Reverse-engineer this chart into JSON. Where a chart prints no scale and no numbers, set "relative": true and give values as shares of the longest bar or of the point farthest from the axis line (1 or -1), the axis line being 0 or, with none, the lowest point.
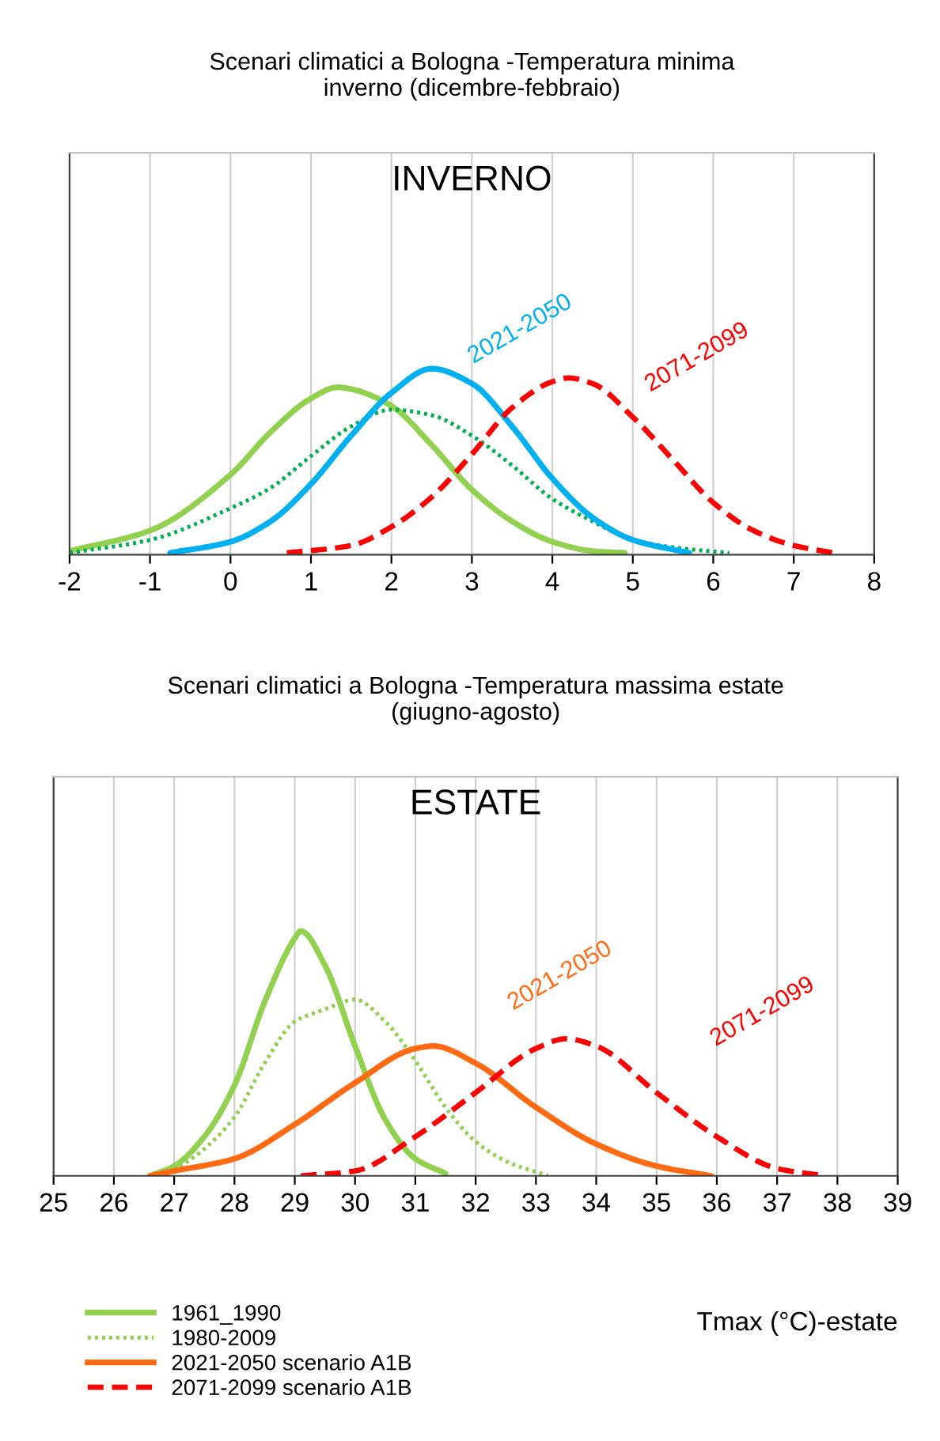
{
  "chart_data": [
    {
      "type": "line",
      "title": "Scenari climatici a Bologna -Temperatura minima\ninverno (dicembre-febbraio)",
      "subtitle": "INVERNO",
      "relative": true,
      "xlim": [
        -2,
        8
      ],
      "xticks": [
        -2,
        -1,
        0,
        1,
        2,
        3,
        4,
        5,
        6,
        7,
        8
      ],
      "grid": "x",
      "legend": false,
      "annotations": [
        "2021-2050",
        "2071-2099"
      ],
      "series": [
        {
          "color": "#92d050",
          "line_style": "solid",
          "x": [
            -2,
            -1,
            0,
            0.5,
            1,
            1.33,
            1.5,
            2,
            2.5,
            3,
            3.5,
            4,
            4.5,
            4.9
          ],
          "values": [
            0.02,
            0.13,
            0.43,
            0.66,
            0.84,
            0.9,
            0.89,
            0.8,
            0.59,
            0.35,
            0.18,
            0.07,
            0.02,
            0.01
          ]
        },
        {
          "color": "#00b050",
          "line_style": "dotted",
          "x": [
            -2,
            -1,
            0,
            0.5,
            1,
            1.5,
            2,
            2.5,
            3,
            3.5,
            4,
            4.5,
            5,
            5.5,
            6.2
          ],
          "values": [
            0.01,
            0.08,
            0.25,
            0.36,
            0.53,
            0.69,
            0.78,
            0.75,
            0.64,
            0.48,
            0.3,
            0.18,
            0.08,
            0.04,
            0.01
          ]
        },
        {
          "color": "#00b0f0",
          "line_style": "solid",
          "x": [
            -0.75,
            0,
            0.5,
            1,
            1.5,
            2,
            2.5,
            3,
            3.5,
            4,
            4.5,
            5,
            5.7
          ],
          "values": [
            0.01,
            0.07,
            0.18,
            0.38,
            0.64,
            0.87,
            1.0,
            0.92,
            0.69,
            0.41,
            0.2,
            0.08,
            0.01
          ]
        },
        {
          "color": "#ff0000",
          "line_style": "dashed",
          "x": [
            0.7,
            1.5,
            2,
            2.5,
            3,
            3.5,
            4,
            4.2,
            4.5,
            5,
            5.5,
            6,
            6.5,
            7,
            7.5
          ],
          "values": [
            0.01,
            0.05,
            0.15,
            0.31,
            0.54,
            0.79,
            0.93,
            0.95,
            0.92,
            0.74,
            0.51,
            0.28,
            0.13,
            0.05,
            0.01
          ]
        }
      ]
    },
    {
      "type": "line",
      "title": "Scenari climatici a Bologna -Temperatura massima estate\n(giugno-agosto)",
      "subtitle": "ESTATE",
      "xlabel": "Tmax (°C)-estate",
      "relative": true,
      "xlim": [
        25,
        39
      ],
      "xticks": [
        25,
        26,
        27,
        28,
        29,
        30,
        31,
        32,
        33,
        34,
        35,
        36,
        37,
        38,
        39
      ],
      "grid": "x",
      "legend": "bottom",
      "annotations": [
        "2021-2050",
        "2071-2099"
      ],
      "series": [
        {
          "name": "1961_1990",
          "color": "#92d050",
          "line_style": "solid",
          "x": [
            26.6,
            27,
            27.5,
            28,
            28.5,
            29,
            29.1,
            29.5,
            30,
            30.5,
            31,
            31.5
          ],
          "values": [
            0.0,
            0.04,
            0.16,
            0.37,
            0.71,
            0.97,
            1.0,
            0.86,
            0.53,
            0.23,
            0.07,
            0.01
          ]
        },
        {
          "name": "1980-2009",
          "color": "#92d050",
          "line_style": "dotted",
          "x": [
            27,
            27.5,
            28,
            28.5,
            29,
            29.5,
            30,
            30.5,
            31,
            31.5,
            32,
            32.5,
            33.2
          ],
          "values": [
            0.02,
            0.11,
            0.24,
            0.46,
            0.63,
            0.68,
            0.72,
            0.63,
            0.47,
            0.28,
            0.14,
            0.06,
            0.0
          ]
        },
        {
          "name": "2021-2050 scenario A1B",
          "color": "#ff6a13",
          "line_style": "solid",
          "x": [
            26.6,
            27,
            28,
            29,
            30,
            31,
            31.3,
            32,
            33,
            34,
            35,
            35.9
          ],
          "values": [
            0.0,
            0.02,
            0.07,
            0.21,
            0.38,
            0.52,
            0.53,
            0.46,
            0.28,
            0.13,
            0.04,
            0.0
          ]
        },
        {
          "name": "2071-2099 scenario A1B",
          "color": "#ff0000",
          "line_style": "dashed",
          "x": [
            29.1,
            30,
            31,
            32,
            33,
            33.5,
            34,
            35,
            36,
            37,
            37.8
          ],
          "values": [
            0.0,
            0.02,
            0.16,
            0.34,
            0.52,
            0.56,
            0.53,
            0.34,
            0.16,
            0.03,
            0.0
          ]
        }
      ]
    }
  ]
}
